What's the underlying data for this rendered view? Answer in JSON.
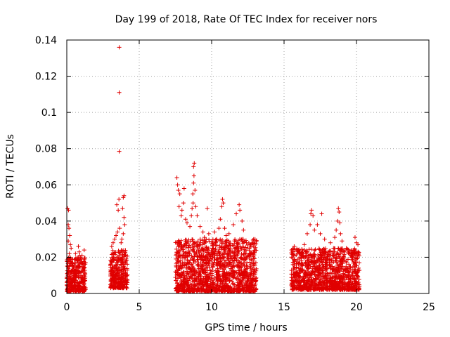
{
  "chart_data": {
    "type": "scatter",
    "title": "Day 199 of 2018, Rate Of TEC Index for receiver nors",
    "xlabel": "GPS time / hours",
    "ylabel": "ROTI / TECUs",
    "xlim": [
      0,
      25
    ],
    "ylim": [
      0,
      0.14
    ],
    "xticks": [
      0,
      5,
      10,
      15,
      20,
      25
    ],
    "xtick_labels": [
      "0",
      "5",
      "10",
      "15",
      "20",
      "25"
    ],
    "yticks": [
      0,
      0.02,
      0.04,
      0.06,
      0.08,
      0.1,
      0.12,
      0.14
    ],
    "ytick_labels": [
      "0",
      "0.02",
      "0.04",
      "0.06",
      "0.08",
      "0.1",
      "0.12",
      "0.14"
    ],
    "grid": true,
    "marker": "+",
    "color": "#e00000",
    "clusters": [
      {
        "x_start": 0.0,
        "x_end": 1.3,
        "y_min": 0.001,
        "y_max": 0.02,
        "count": 360
      },
      {
        "x_start": 3.0,
        "x_end": 4.2,
        "y_min": 0.003,
        "y_max": 0.024,
        "count": 330
      },
      {
        "x_start": 7.5,
        "x_end": 13.1,
        "y_min": 0.001,
        "y_max": 0.03,
        "count": 1400
      },
      {
        "x_start": 15.5,
        "x_end": 20.2,
        "y_min": 0.002,
        "y_max": 0.025,
        "count": 1100
      }
    ],
    "points": [
      [
        0.05,
        0.047
      ],
      [
        0.12,
        0.046
      ],
      [
        0.1,
        0.038
      ],
      [
        0.15,
        0.036
      ],
      [
        0.2,
        0.032
      ],
      [
        0.1,
        0.029
      ],
      [
        0.25,
        0.027
      ],
      [
        0.3,
        0.025
      ],
      [
        0.18,
        0.022
      ],
      [
        0.6,
        0.022
      ],
      [
        0.8,
        0.026
      ],
      [
        0.85,
        0.023
      ],
      [
        0.9,
        0.021
      ],
      [
        1.05,
        0.021
      ],
      [
        1.2,
        0.024
      ],
      [
        3.1,
        0.026
      ],
      [
        3.2,
        0.028
      ],
      [
        3.3,
        0.03
      ],
      [
        3.4,
        0.032
      ],
      [
        3.5,
        0.034
      ],
      [
        3.45,
        0.049
      ],
      [
        3.6,
        0.052
      ],
      [
        3.55,
        0.046
      ],
      [
        3.65,
        0.036
      ],
      [
        3.75,
        0.028
      ],
      [
        3.85,
        0.047
      ],
      [
        3.9,
        0.053
      ],
      [
        3.95,
        0.054
      ],
      [
        3.95,
        0.042
      ],
      [
        4.0,
        0.038
      ],
      [
        3.9,
        0.033
      ],
      [
        3.8,
        0.03
      ],
      [
        3.62,
        0.0785
      ],
      [
        3.62,
        0.111
      ],
      [
        3.62,
        0.136
      ],
      [
        7.6,
        0.064
      ],
      [
        7.65,
        0.06
      ],
      [
        7.7,
        0.057
      ],
      [
        7.8,
        0.055
      ],
      [
        7.75,
        0.048
      ],
      [
        7.9,
        0.043
      ],
      [
        7.95,
        0.046
      ],
      [
        8.05,
        0.05
      ],
      [
        8.1,
        0.058
      ],
      [
        8.2,
        0.041
      ],
      [
        8.3,
        0.039
      ],
      [
        8.5,
        0.037
      ],
      [
        8.6,
        0.043
      ],
      [
        8.65,
        0.047
      ],
      [
        8.7,
        0.055
      ],
      [
        8.72,
        0.05
      ],
      [
        8.75,
        0.061
      ],
      [
        8.78,
        0.065
      ],
      [
        8.75,
        0.07
      ],
      [
        8.8,
        0.072
      ],
      [
        8.85,
        0.057
      ],
      [
        8.9,
        0.048
      ],
      [
        9.0,
        0.043
      ],
      [
        9.2,
        0.037
      ],
      [
        9.4,
        0.034
      ],
      [
        9.5,
        0.031
      ],
      [
        9.7,
        0.047
      ],
      [
        9.8,
        0.033
      ],
      [
        10.2,
        0.034
      ],
      [
        10.5,
        0.036
      ],
      [
        10.6,
        0.041
      ],
      [
        10.7,
        0.048
      ],
      [
        10.75,
        0.052
      ],
      [
        10.8,
        0.05
      ],
      [
        10.9,
        0.036
      ],
      [
        11.0,
        0.032
      ],
      [
        11.2,
        0.033
      ],
      [
        11.5,
        0.038
      ],
      [
        11.7,
        0.044
      ],
      [
        11.9,
        0.049
      ],
      [
        11.95,
        0.046
      ],
      [
        12.1,
        0.04
      ],
      [
        12.2,
        0.035
      ],
      [
        12.4,
        0.028
      ],
      [
        12.7,
        0.027
      ],
      [
        12.9,
        0.026
      ],
      [
        13.0,
        0.024
      ],
      [
        15.7,
        0.026
      ],
      [
        16.0,
        0.024
      ],
      [
        16.4,
        0.027
      ],
      [
        16.6,
        0.033
      ],
      [
        16.8,
        0.038
      ],
      [
        16.85,
        0.044
      ],
      [
        16.9,
        0.046
      ],
      [
        17.0,
        0.043
      ],
      [
        17.1,
        0.035
      ],
      [
        17.3,
        0.038
      ],
      [
        17.5,
        0.033
      ],
      [
        17.6,
        0.044
      ],
      [
        17.8,
        0.03
      ],
      [
        18.2,
        0.028
      ],
      [
        18.5,
        0.031
      ],
      [
        18.6,
        0.035
      ],
      [
        18.7,
        0.04
      ],
      [
        18.75,
        0.047
      ],
      [
        18.8,
        0.045
      ],
      [
        18.85,
        0.039
      ],
      [
        18.9,
        0.033
      ],
      [
        19.0,
        0.029
      ],
      [
        19.3,
        0.025
      ],
      [
        19.5,
        0.023
      ],
      [
        19.8,
        0.024
      ],
      [
        19.9,
        0.031
      ],
      [
        20.0,
        0.028
      ],
      [
        20.1,
        0.027
      ]
    ]
  }
}
